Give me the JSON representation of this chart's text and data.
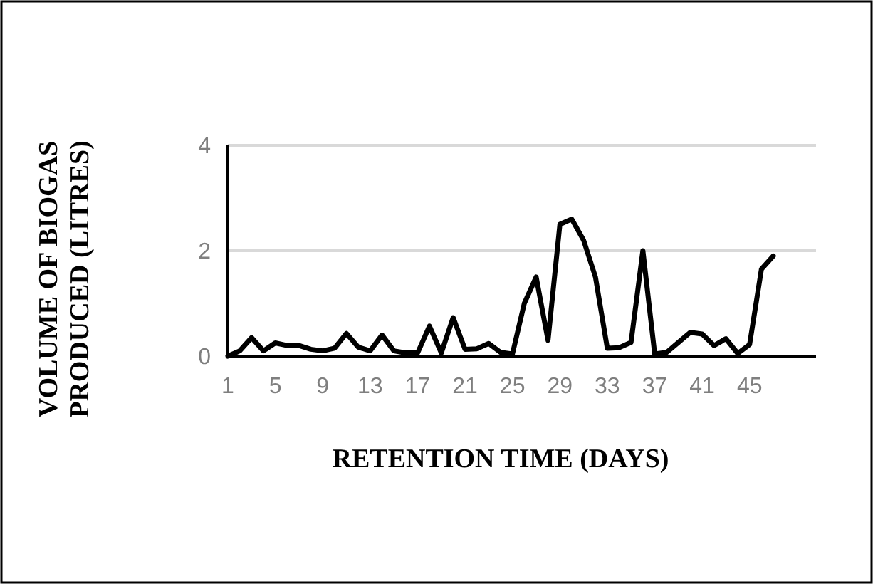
{
  "chart_data": {
    "type": "line",
    "xlabel": "RETENTION TIME (DAYS)",
    "ylabel": "VOLUME OF BIOGAS PRODUCED (LITRES)",
    "categories": [
      "1",
      null,
      null,
      null,
      "5",
      null,
      null,
      null,
      "9",
      null,
      null,
      null,
      "13",
      null,
      null,
      null,
      "17",
      null,
      null,
      null,
      "21",
      null,
      null,
      null,
      "25",
      null,
      null,
      null,
      "29",
      null,
      null,
      null,
      "33",
      null,
      null,
      null,
      "37",
      null,
      null,
      null,
      "41",
      null,
      null,
      null,
      "45",
      null,
      null
    ],
    "series": [
      {
        "color": "#000000",
        "values": [
          0,
          0.1,
          0.35,
          0.1,
          0.25,
          0.2,
          0.2,
          0.13,
          0.1,
          0.15,
          0.43,
          0.17,
          0.1,
          0.4,
          0.1,
          0.06,
          0.06,
          0.57,
          0.06,
          0.73,
          0.13,
          0.14,
          0.24,
          0.07,
          0.04,
          1.0,
          1.5,
          0.3,
          2.5,
          2.6,
          2.2,
          1.5,
          0.15,
          0.16,
          0.26,
          2.0,
          0.04,
          0.07,
          0.26,
          0.45,
          0.42,
          0.2,
          0.33,
          0.05,
          0.22,
          1.65,
          1.9
        ]
      }
    ],
    "ylim": [
      0,
      4
    ],
    "yticks": [
      0,
      2,
      4
    ],
    "grid": "y",
    "marker": "none",
    "line_style": "solid"
  }
}
